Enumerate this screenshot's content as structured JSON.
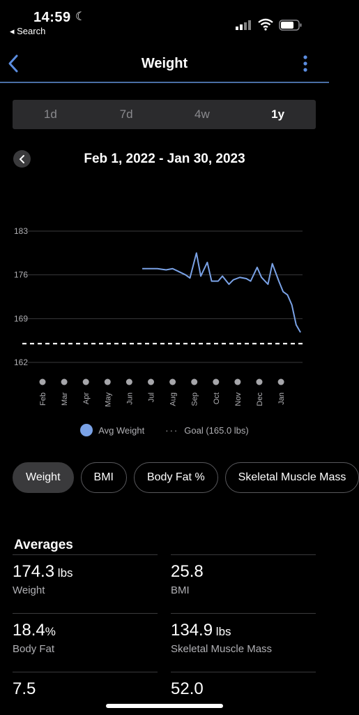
{
  "status": {
    "time": "14:59",
    "back_label": "◂ Search"
  },
  "nav": {
    "title": "Weight"
  },
  "segments": [
    "1d",
    "7d",
    "4w",
    "1y"
  ],
  "active_segment": "1y",
  "range": {
    "label": "Feb 1, 2022 - Jan 30, 2023"
  },
  "chart_data": {
    "type": "line",
    "y_ticks": [
      "183",
      "176",
      "169",
      "162"
    ],
    "ylim": [
      162,
      183
    ],
    "x_labels": [
      "Feb",
      "Mar",
      "Apr",
      "May",
      "Jun",
      "Jul",
      "Aug",
      "Sep",
      "Oct",
      "Nov",
      "Dec",
      "Jan"
    ],
    "series": [
      {
        "name": "Avg Weight",
        "color": "#7aa2e6",
        "points": [
          [
            4.6,
            177.0
          ],
          [
            5.0,
            177.0
          ],
          [
            5.3,
            177.0
          ],
          [
            5.7,
            176.8
          ],
          [
            6.0,
            177.0
          ],
          [
            6.3,
            176.5
          ],
          [
            6.6,
            176.0
          ],
          [
            6.8,
            175.5
          ],
          [
            7.1,
            179.5
          ],
          [
            7.3,
            175.8
          ],
          [
            7.6,
            178.0
          ],
          [
            7.8,
            175.0
          ],
          [
            8.1,
            175.0
          ],
          [
            8.3,
            175.8
          ],
          [
            8.6,
            174.5
          ],
          [
            8.8,
            175.2
          ],
          [
            9.1,
            175.6
          ],
          [
            9.4,
            175.4
          ],
          [
            9.6,
            175.0
          ],
          [
            9.9,
            177.2
          ],
          [
            10.1,
            175.6
          ],
          [
            10.4,
            174.5
          ],
          [
            10.6,
            177.8
          ],
          [
            10.9,
            175.0
          ],
          [
            11.1,
            173.3
          ],
          [
            11.3,
            172.8
          ],
          [
            11.5,
            171.2
          ],
          [
            11.7,
            168.0
          ],
          [
            11.9,
            166.8
          ]
        ]
      },
      {
        "name": "Goal (165.0 lbs)",
        "type": "dashed",
        "value": 165.0,
        "color": "#ffffff"
      }
    ]
  },
  "legend": {
    "avg": "Avg Weight",
    "goal": "Goal (165.0 lbs)",
    "goal_symbol": "···"
  },
  "chips": [
    "Weight",
    "BMI",
    "Body Fat %",
    "Skeletal Muscle Mass"
  ],
  "active_chip": "Weight",
  "averages": {
    "title": "Averages",
    "items": [
      {
        "value": "174.3",
        "unit": " lbs",
        "label": "Weight"
      },
      {
        "value": "25.8",
        "unit": "",
        "label": "BMI"
      },
      {
        "value": "18.4",
        "unit": "%",
        "label": "Body Fat"
      },
      {
        "value": "134.9",
        "unit": " lbs",
        "label": "Skeletal Muscle Mass"
      }
    ],
    "partial": [
      "7.5",
      "52.0"
    ]
  }
}
